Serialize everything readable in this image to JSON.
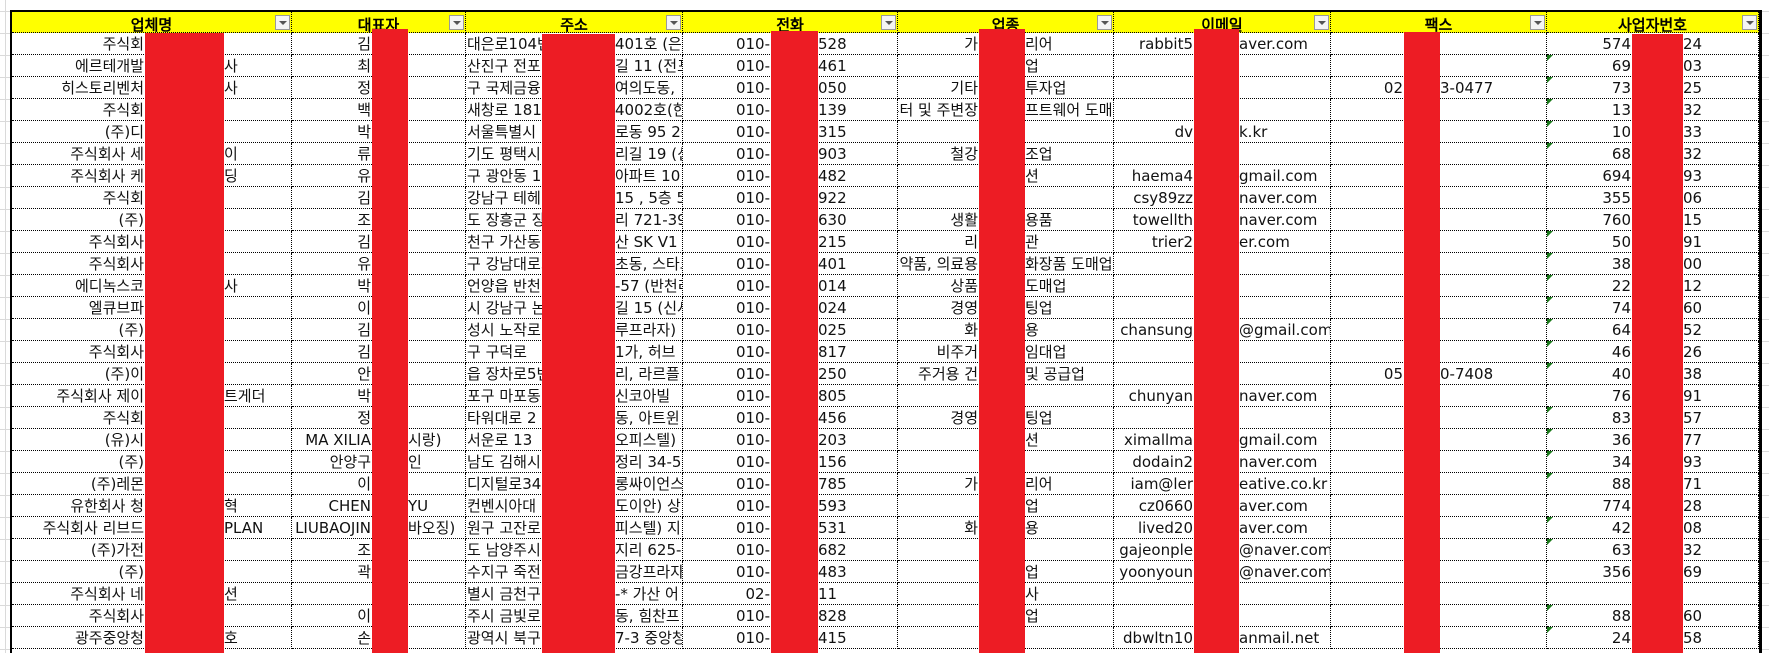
{
  "sheet": {
    "headers": [
      "업체명",
      "대표자",
      "주소",
      "전화",
      "업종",
      "이메일",
      "팩스",
      "사업자번호"
    ],
    "header_bg": "#ffff00",
    "redaction_color": "#ed1c24",
    "error_indicator_color": "#1a7a1a",
    "rows": [
      {
        "cells": [
          [
            "주식회",
            ""
          ],
          [
            "김",
            ""
          ],
          [
            "대은로104번",
            "401호 (은"
          ],
          [
            "010-",
            "528"
          ],
          [
            "가",
            "리어"
          ],
          [
            "rabbit5",
            "aver.com"
          ],
          [
            "",
            ""
          ],
          [
            "574",
            "24"
          ]
        ],
        "flag": false
      },
      {
        "cells": [
          [
            "에르테개발",
            "사"
          ],
          [
            "최",
            ""
          ],
          [
            "산진구 전포",
            "길 11 (전포"
          ],
          [
            "010-",
            "461"
          ],
          [
            "",
            "업"
          ],
          [
            "",
            ""
          ],
          [
            "",
            ""
          ],
          [
            "69",
            "03"
          ]
        ],
        "flag": true
      },
      {
        "cells": [
          [
            "히스토리벤처",
            "사"
          ],
          [
            "정",
            ""
          ],
          [
            "구 국제금융",
            "여의도동,"
          ],
          [
            "010-",
            "050"
          ],
          [
            "기타",
            "투자업"
          ],
          [
            "",
            ""
          ],
          [
            "02",
            "3-0477"
          ],
          [
            "73",
            "25"
          ]
        ],
        "flag": true
      },
      {
        "cells": [
          [
            "주식회",
            ""
          ],
          [
            "백",
            ""
          ],
          [
            " 새창로 181",
            "4002호(한"
          ],
          [
            "010-",
            "139"
          ],
          [
            "퓨터 및 주변장",
            "프트웨어 도매"
          ],
          [
            "",
            ""
          ],
          [
            "",
            ""
          ],
          [
            "13",
            "32"
          ]
        ],
        "flag": true
      },
      {
        "cells": [
          [
            "(주)디",
            ""
          ],
          [
            "박",
            ""
          ],
          [
            "서울특별시",
            "로동 95 2층"
          ],
          [
            "010-",
            "315"
          ],
          [
            "",
            ""
          ],
          [
            "dv",
            "k.kr"
          ],
          [
            "",
            ""
          ],
          [
            "10",
            "33"
          ]
        ],
        "flag": true
      },
      {
        "cells": [
          [
            "주식회사 세",
            "이"
          ],
          [
            "류",
            ""
          ],
          [
            "기도 평택시",
            "리길 19 (신"
          ],
          [
            "010-",
            "903"
          ],
          [
            "철강",
            "조업"
          ],
          [
            "",
            ""
          ],
          [
            "",
            ""
          ],
          [
            "68",
            "32"
          ]
        ],
        "flag": true
      },
      {
        "cells": [
          [
            "주식회사 케",
            "딩"
          ],
          [
            "유",
            ""
          ],
          [
            "구 광안동 1",
            "아파트 10"
          ],
          [
            "010-",
            "482"
          ],
          [
            "",
            "션"
          ],
          [
            "haema4",
            "gmail.com"
          ],
          [
            "",
            ""
          ],
          [
            "694",
            "93"
          ]
        ],
        "flag": false
      },
      {
        "cells": [
          [
            "주식회",
            ""
          ],
          [
            "김",
            ""
          ],
          [
            "강남구 테헤",
            "15 , 5층 51"
          ],
          [
            "010-",
            "922"
          ],
          [
            "",
            ""
          ],
          [
            "csy89zz",
            "naver.com"
          ],
          [
            "",
            ""
          ],
          [
            "355",
            "06"
          ]
        ],
        "flag": false
      },
      {
        "cells": [
          [
            "(주)",
            ""
          ],
          [
            "조",
            ""
          ],
          [
            "도 장흥군 장",
            "리 721-39 ("
          ],
          [
            "010-",
            "630"
          ],
          [
            "생활",
            "용품"
          ],
          [
            "towellth",
            "naver.com"
          ],
          [
            "",
            ""
          ],
          [
            "760",
            "15"
          ]
        ],
        "flag": false
      },
      {
        "cells": [
          [
            "주식회사",
            ""
          ],
          [
            "김",
            ""
          ],
          [
            "천구 가산동",
            "산 SK V1"
          ],
          [
            "010-",
            "215"
          ],
          [
            "리",
            "관"
          ],
          [
            "trier2",
            "er.com"
          ],
          [
            "",
            ""
          ],
          [
            "50",
            "91"
          ]
        ],
        "flag": true
      },
      {
        "cells": [
          [
            "주식회사",
            ""
          ],
          [
            "유",
            ""
          ],
          [
            "구 강남대로5",
            "초동, 스타크"
          ],
          [
            "010-",
            "401"
          ],
          [
            "의약품, 의료용",
            "화장품 도매업"
          ],
          [
            "",
            ""
          ],
          [
            "",
            ""
          ],
          [
            "38",
            "00"
          ]
        ],
        "flag": true
      },
      {
        "cells": [
          [
            "에디녹스코",
            "사"
          ],
          [
            "박",
            ""
          ],
          [
            " 언양읍 반천",
            "-57 (반천리"
          ],
          [
            "010-",
            "014"
          ],
          [
            "상품",
            "도매업"
          ],
          [
            "",
            ""
          ],
          [
            "",
            ""
          ],
          [
            "22",
            "12"
          ]
        ],
        "flag": true
      },
      {
        "cells": [
          [
            "엘큐브파",
            ""
          ],
          [
            "이",
            ""
          ],
          [
            "시 강남구 논",
            "길 15 (신사"
          ],
          [
            "010-",
            "024"
          ],
          [
            "경영",
            "팅업"
          ],
          [
            "",
            ""
          ],
          [
            "",
            ""
          ],
          [
            "74",
            "60"
          ]
        ],
        "flag": true
      },
      {
        "cells": [
          [
            "(주)",
            ""
          ],
          [
            "김",
            ""
          ],
          [
            "성시 노작로",
            "루프라자) ("
          ],
          [
            "010-",
            "025"
          ],
          [
            "화",
            "용"
          ],
          [
            "chansung",
            "@gmail.com"
          ],
          [
            "",
            ""
          ],
          [
            "64",
            "52"
          ]
        ],
        "flag": true
      },
      {
        "cells": [
          [
            "주식회사",
            ""
          ],
          [
            "김",
            ""
          ],
          [
            "구 구덕로",
            "1가, 허브"
          ],
          [
            "010-",
            "817"
          ],
          [
            "비주거",
            "임대업"
          ],
          [
            "",
            ""
          ],
          [
            "",
            ""
          ],
          [
            "46",
            "26"
          ]
        ],
        "flag": true
      },
      {
        "cells": [
          [
            "(주)이",
            ""
          ],
          [
            "안",
            ""
          ],
          [
            "읍 장차로5번",
            "리, 라르플"
          ],
          [
            "010-",
            "250"
          ],
          [
            "주거용 건",
            "및 공급업"
          ],
          [
            "",
            ""
          ],
          [
            "05",
            "0-7408"
          ],
          [
            "40",
            "38"
          ]
        ],
        "flag": true
      },
      {
        "cells": [
          [
            "주식회사 제이",
            "트게더"
          ],
          [
            "박",
            ""
          ],
          [
            "포구 마포동",
            "신코아빌"
          ],
          [
            "010-",
            "805"
          ],
          [
            "",
            ""
          ],
          [
            "chunyan",
            "naver.com"
          ],
          [
            "",
            ""
          ],
          [
            "76",
            "91"
          ]
        ],
        "flag": false
      },
      {
        "cells": [
          [
            "주식회",
            ""
          ],
          [
            "정",
            ""
          ],
          [
            " 타워대로 2",
            "동, 아트윈"
          ],
          [
            "010-",
            "456"
          ],
          [
            "경영",
            "팅업"
          ],
          [
            "",
            ""
          ],
          [
            "",
            ""
          ],
          [
            "83",
            "57"
          ]
        ],
        "flag": true
      },
      {
        "cells": [
          [
            "(유)시",
            ""
          ],
          [
            "MA XILIA",
            "시랑)"
          ],
          [
            " 서운로 13",
            "오피스텔) 저"
          ],
          [
            "010-",
            "203"
          ],
          [
            "",
            "션"
          ],
          [
            "ximallma",
            "gmail.com"
          ],
          [
            "",
            ""
          ],
          [
            "36",
            "77"
          ]
        ],
        "flag": true
      },
      {
        "cells": [
          [
            "(주)",
            ""
          ],
          [
            "안양구",
            "인"
          ],
          [
            " 남도 김해시",
            "정리 34-5"
          ],
          [
            "010-",
            "156"
          ],
          [
            "",
            ""
          ],
          [
            "dodain2",
            "naver.com"
          ],
          [
            "",
            ""
          ],
          [
            "34",
            "93"
          ]
        ],
        "flag": true
      },
      {
        "cells": [
          [
            "(주)레몬",
            ""
          ],
          [
            "이",
            ""
          ],
          [
            "디지털로34길",
            "롱싸이언스"
          ],
          [
            "010-",
            "785"
          ],
          [
            "가",
            "리어"
          ],
          [
            "iam@ler",
            "eative.co.kr"
          ],
          [
            "",
            ""
          ],
          [
            "88",
            "71"
          ]
        ],
        "flag": true
      },
      {
        "cells": [
          [
            "유한회사 청",
            "혁"
          ],
          [
            "CHEN",
            "YU"
          ],
          [
            " 컨벤시아대",
            "도이안) 상"
          ],
          [
            "010-",
            "593"
          ],
          [
            "",
            "업"
          ],
          [
            "cz0660",
            "aver.com"
          ],
          [
            "",
            ""
          ],
          [
            "774",
            "28"
          ]
        ],
        "flag": false
      },
      {
        "cells": [
          [
            "주식회사 리브드",
            "PLAN"
          ],
          [
            "LIUBAOJIN",
            "바오징)"
          ],
          [
            "원구 고잔로",
            "피스텔) 지"
          ],
          [
            "010-",
            "531"
          ],
          [
            "화",
            "용"
          ],
          [
            "lived20",
            "aver.com"
          ],
          [
            "",
            ""
          ],
          [
            "42",
            "08"
          ]
        ],
        "flag": true
      },
      {
        "cells": [
          [
            "(주)가전",
            ""
          ],
          [
            "조",
            ""
          ],
          [
            "도 남양주시",
            "지리 625-4"
          ],
          [
            "010-",
            "682"
          ],
          [
            "",
            ""
          ],
          [
            "gajeonple",
            "@naver.com"
          ],
          [
            "",
            ""
          ],
          [
            "63",
            "32"
          ]
        ],
        "flag": true
      },
      {
        "cells": [
          [
            "(주)",
            ""
          ],
          [
            "곽",
            ""
          ],
          [
            "수지구 죽전",
            "금강프라자"
          ],
          [
            "010-",
            "483"
          ],
          [
            "",
            "업"
          ],
          [
            "yoonyoun",
            "@naver.com"
          ],
          [
            "",
            ""
          ],
          [
            "356",
            "69"
          ]
        ],
        "flag": false
      },
      {
        "cells": [
          [
            "주식회사 네",
            "션"
          ],
          [
            "",
            ""
          ],
          [
            "별시 금천구",
            "-* 가산 어"
          ],
          [
            "02-",
            "11"
          ],
          [
            "",
            "사"
          ],
          [
            "",
            ""
          ],
          [
            "",
            ""
          ],
          [
            "",
            ""
          ]
        ],
        "flag": false
      },
      {
        "cells": [
          [
            "주식회사",
            ""
          ],
          [
            "이",
            ""
          ],
          [
            "주시 금빛로",
            "동, 힘찬프"
          ],
          [
            "010-",
            "828"
          ],
          [
            "",
            "업"
          ],
          [
            "",
            ""
          ],
          [
            "",
            ""
          ],
          [
            "88",
            "60"
          ]
        ],
        "flag": true
      },
      {
        "cells": [
          [
            "광주중앙청",
            "호"
          ],
          [
            "손",
            ""
          ],
          [
            "광역시 북구",
            "7-3 중앙청"
          ],
          [
            "010-",
            "415"
          ],
          [
            "",
            ""
          ],
          [
            "dbwltn10",
            "anmail.net"
          ],
          [
            "",
            ""
          ],
          [
            "24",
            "58"
          ]
        ],
        "flag": true
      }
    ]
  }
}
